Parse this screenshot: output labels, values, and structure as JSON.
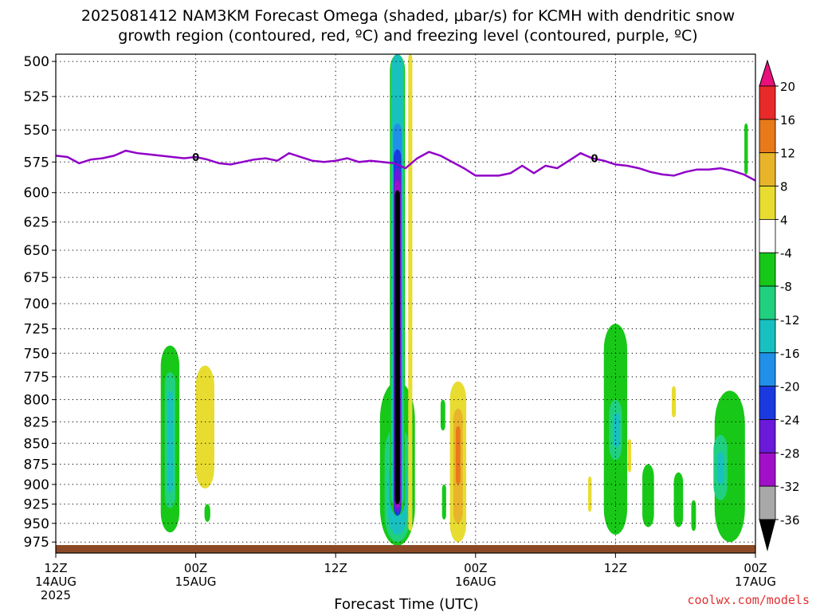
{
  "title_line1": "2025081412 NAM3KM Forecast Omega (shaded, μbar/s) for KCMH with dendritic snow",
  "title_line2": "growth region (contoured, red, ºC) and freezing level (contoured, purple, ºC)",
  "watermark": "coolwx.com/models",
  "chart_data": {
    "type": "time-height cross section",
    "xlabel": "Forecast Time (UTC)",
    "x_ticks": [
      {
        "hour": 0,
        "lines": [
          "12Z",
          "14AUG",
          "2025"
        ]
      },
      {
        "hour": 12,
        "lines": [
          "00Z",
          "15AUG"
        ]
      },
      {
        "hour": 24,
        "lines": [
          "12Z"
        ]
      },
      {
        "hour": 36,
        "lines": [
          "00Z",
          "16AUG"
        ]
      },
      {
        "hour": 48,
        "lines": [
          "12Z"
        ]
      },
      {
        "hour": 60,
        "lines": [
          "00Z",
          "17AUG"
        ]
      }
    ],
    "x_range_hours": [
      0,
      60
    ],
    "y_ticks_hpa": [
      500,
      525,
      550,
      575,
      600,
      625,
      650,
      675,
      700,
      725,
      750,
      775,
      800,
      825,
      850,
      875,
      900,
      925,
      950,
      975
    ],
    "y_range_hpa": [
      495,
      990
    ],
    "y_scale": "log",
    "grid": true,
    "colorbar": {
      "labels": [
        "20",
        "16",
        "12",
        "8",
        "4",
        "-4",
        "-8",
        "-12",
        "-16",
        "-20",
        "-24",
        "-28",
        "-32",
        "-36"
      ],
      "colors": [
        "#e8107a",
        "#e82a2a",
        "#e87a1a",
        "#e8b52a",
        "#e8dc30",
        "#ffffff",
        "#18c818",
        "#20d080",
        "#18c0c0",
        "#2090e8",
        "#1a3ae0",
        "#6a1ad8",
        "#a010c8",
        "#a8a8a8",
        "#000000"
      ]
    },
    "freezing_level": {
      "label": "0",
      "color": "#9000c8",
      "hours": [
        0,
        1,
        2,
        3,
        4,
        5,
        6,
        7,
        8,
        9,
        10,
        11,
        12,
        13,
        14,
        15,
        16,
        17,
        18,
        19,
        20,
        21,
        22,
        23,
        24,
        25,
        26,
        27,
        28,
        29,
        30,
        31,
        32,
        33,
        34,
        35,
        36,
        37,
        38,
        39,
        40,
        41,
        42,
        43,
        44,
        45,
        46,
        47,
        48,
        49,
        50,
        51,
        52,
        53,
        54,
        55,
        56,
        57,
        58,
        59,
        60
      ],
      "hpa": [
        570,
        571,
        576,
        573,
        572,
        570,
        566,
        568,
        569,
        570,
        571,
        572,
        571,
        573,
        576,
        577,
        575,
        573,
        572,
        574,
        568,
        571,
        574,
        575,
        574,
        572,
        575,
        574,
        575,
        576,
        580,
        572,
        567,
        570,
        575,
        580,
        586,
        586,
        586,
        584,
        578,
        584,
        578,
        580,
        574,
        568,
        572,
        574,
        577,
        578,
        580,
        583,
        585,
        586,
        583,
        581,
        581,
        580,
        582,
        585,
        590
      ]
    },
    "omega_areas": [
      {
        "level": -8,
        "color": "#18c818",
        "hour": 9.8,
        "hpa_top": 742,
        "hpa_bottom": 962,
        "width_h": 1.6
      },
      {
        "level": -12,
        "color": "#20d080",
        "hour": 9.8,
        "hpa_top": 770,
        "hpa_bottom": 930,
        "width_h": 0.9
      },
      {
        "level": -16,
        "color": "#18c0c0",
        "hour": 9.8,
        "hpa_top": 790,
        "hpa_bottom": 910,
        "width_h": 0.45
      },
      {
        "level": -8,
        "color": "#18c818",
        "hour": 13.0,
        "hpa_top": 925,
        "hpa_bottom": 948,
        "width_h": 0.5
      },
      {
        "level": 4,
        "color": "#e8dc30",
        "hour": 12.8,
        "hpa_top": 763,
        "hpa_bottom": 905,
        "width_h": 1.6
      },
      {
        "level": -8,
        "color": "#18c818",
        "hour": 29.3,
        "hpa_top": 780,
        "hpa_bottom": 980,
        "width_h": 3.0
      },
      {
        "level": -12,
        "color": "#20d080",
        "hour": 29.3,
        "hpa_top": 830,
        "hpa_bottom": 975,
        "width_h": 2.2
      },
      {
        "level": -16,
        "color": "#18c0c0",
        "hour": 29.3,
        "hpa_top": 870,
        "hpa_bottom": 965,
        "width_h": 1.6
      },
      {
        "level": -8,
        "color": "#18c818",
        "hour": 29.3,
        "hpa_top": 495,
        "hpa_bottom": 940,
        "width_h": 1.3
      },
      {
        "level": -12,
        "color": "#20d080",
        "hour": 29.3,
        "hpa_top": 495,
        "hpa_bottom": 930,
        "width_h": 1.1
      },
      {
        "level": -16,
        "color": "#18c0c0",
        "hour": 29.3,
        "hpa_top": 495,
        "hpa_bottom": 930,
        "width_h": 0.9
      },
      {
        "level": -20,
        "color": "#2090e8",
        "hour": 29.3,
        "hpa_top": 545,
        "hpa_bottom": 935,
        "width_h": 0.75
      },
      {
        "level": -24,
        "color": "#1a3ae0",
        "hour": 29.3,
        "hpa_top": 565,
        "hpa_bottom": 940,
        "width_h": 0.65
      },
      {
        "level": -28,
        "color": "#6a1ad8",
        "hour": 29.3,
        "hpa_top": 580,
        "hpa_bottom": 935,
        "width_h": 0.58
      },
      {
        "level": -32,
        "color": "#a010c8",
        "hour": 29.3,
        "hpa_top": 590,
        "hpa_bottom": 930,
        "width_h": 0.5
      },
      {
        "level": -36,
        "color": "#000000",
        "hour": 29.3,
        "hpa_top": 598,
        "hpa_bottom": 925,
        "width_h": 0.44
      },
      {
        "level": 4,
        "color": "#e8dc30",
        "hour": 30.4,
        "hpa_top": 495,
        "hpa_bottom": 960,
        "width_h": 0.35
      },
      {
        "level": -8,
        "color": "#18c818",
        "hour": 33.2,
        "hpa_top": 800,
        "hpa_bottom": 835,
        "width_h": 0.4
      },
      {
        "level": -8,
        "color": "#18c818",
        "hour": 33.3,
        "hpa_top": 900,
        "hpa_bottom": 945,
        "width_h": 0.35
      },
      {
        "level": 4,
        "color": "#e8dc30",
        "hour": 34.5,
        "hpa_top": 780,
        "hpa_bottom": 975,
        "width_h": 1.4
      },
      {
        "level": 8,
        "color": "#e8b52a",
        "hour": 34.5,
        "hpa_top": 810,
        "hpa_bottom": 950,
        "width_h": 0.8
      },
      {
        "level": 12,
        "color": "#e87a1a",
        "hour": 34.5,
        "hpa_top": 830,
        "hpa_bottom": 900,
        "width_h": 0.4
      },
      {
        "level": -8,
        "color": "#18c818",
        "hour": 48.0,
        "hpa_top": 720,
        "hpa_bottom": 965,
        "width_h": 2.0
      },
      {
        "level": -12,
        "color": "#20d080",
        "hour": 48.0,
        "hpa_top": 800,
        "hpa_bottom": 870,
        "width_h": 1.1
      },
      {
        "level": -16,
        "color": "#18c0c0",
        "hour": 48.1,
        "hpa_top": 815,
        "hpa_bottom": 855,
        "width_h": 0.6
      },
      {
        "level": 4,
        "color": "#e8dc30",
        "hour": 45.8,
        "hpa_top": 890,
        "hpa_bottom": 935,
        "width_h": 0.3
      },
      {
        "level": 4,
        "color": "#e8dc30",
        "hour": 49.2,
        "hpa_top": 845,
        "hpa_bottom": 885,
        "width_h": 0.3
      },
      {
        "level": 4,
        "color": "#e8dc30",
        "hour": 53.0,
        "hpa_top": 785,
        "hpa_bottom": 820,
        "width_h": 0.35
      },
      {
        "level": -8,
        "color": "#18c818",
        "hour": 50.8,
        "hpa_top": 875,
        "hpa_bottom": 955,
        "width_h": 1.0
      },
      {
        "level": -8,
        "color": "#18c818",
        "hour": 53.4,
        "hpa_top": 885,
        "hpa_bottom": 955,
        "width_h": 0.8
      },
      {
        "level": -8,
        "color": "#18c818",
        "hour": 54.7,
        "hpa_top": 920,
        "hpa_bottom": 960,
        "width_h": 0.4
      },
      {
        "level": -8,
        "color": "#18c818",
        "hour": 57.8,
        "hpa_top": 790,
        "hpa_bottom": 975,
        "width_h": 2.6
      },
      {
        "level": -12,
        "color": "#20d080",
        "hour": 57.0,
        "hpa_top": 840,
        "hpa_bottom": 920,
        "width_h": 1.2
      },
      {
        "level": -16,
        "color": "#18c0c0",
        "hour": 57.0,
        "hpa_top": 860,
        "hpa_bottom": 900,
        "width_h": 0.6
      },
      {
        "level": -8,
        "color": "#18c818",
        "hour": 59.2,
        "hpa_top": 545,
        "hpa_bottom": 585,
        "width_h": 0.3
      }
    ]
  }
}
